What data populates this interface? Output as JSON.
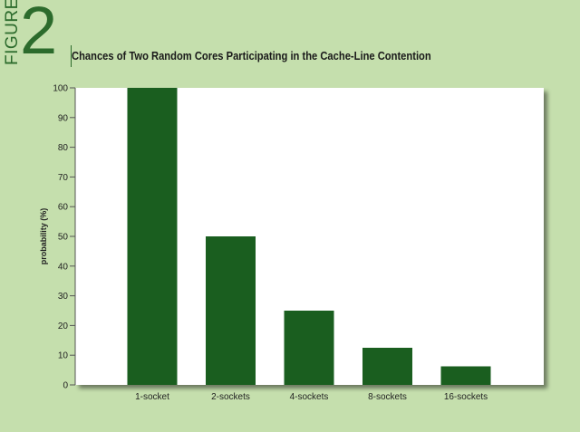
{
  "figure": {
    "word": "FIGURE",
    "number": "2"
  },
  "colors": {
    "background": "#c5dfad",
    "plot_bg": "#ffffff",
    "bar": "#1a5e1f",
    "accent": "#2c6b2c"
  },
  "chart_data": {
    "type": "bar",
    "title": "Chances of Two Random Cores Participating in the Cache-Line Contention",
    "xlabel": "",
    "ylabel": "probability (%)",
    "categories": [
      "1-socket",
      "2-sockets",
      "4-sockets",
      "8-sockets",
      "16-sockets"
    ],
    "values": [
      100,
      50,
      25,
      12.5,
      6.25
    ],
    "ylim": [
      0,
      100
    ],
    "yticks": [
      0,
      10,
      20,
      30,
      40,
      50,
      60,
      70,
      80,
      90,
      100
    ],
    "grid": false,
    "legend": "none"
  }
}
